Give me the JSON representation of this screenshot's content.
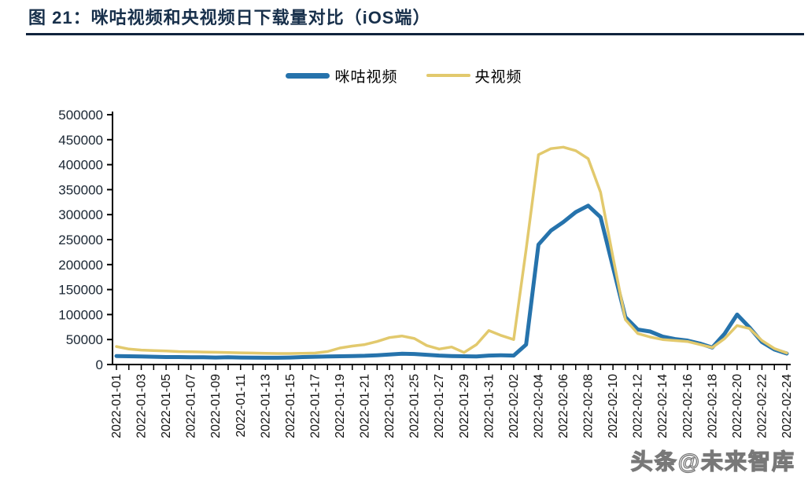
{
  "figure": {
    "title": "图 21：咪咕视频和央视频日下载量对比（iOS端）",
    "watermark": "头条@未来智库"
  },
  "colors": {
    "title": "#18304b",
    "axis": "#000000",
    "y_label": "#1a2633",
    "x_label": "#111111",
    "migu_blue": "#2673ac",
    "yang_yellow": "#e2c96d"
  },
  "chart_data": {
    "type": "line",
    "title": "咪咕视频和央视频日下载量对比（iOS端）",
    "xlabel": "",
    "ylabel": "",
    "ylim": [
      0,
      500000
    ],
    "y_tick_step": 50000,
    "y_tick_labels": [
      "0",
      "50000",
      "100000",
      "150000",
      "200000",
      "250000",
      "300000",
      "350000",
      "400000",
      "450000",
      "500000"
    ],
    "grid": false,
    "legend_position": "top-center",
    "x_label_every": 2,
    "x_label_rotation": -90,
    "x": [
      "2022-01-01",
      "2022-01-02",
      "2022-01-03",
      "2022-01-04",
      "2022-01-05",
      "2022-01-06",
      "2022-01-07",
      "2022-01-08",
      "2022-01-09",
      "2022-01-10",
      "2022-01-11",
      "2022-01-12",
      "2022-01-13",
      "2022-01-14",
      "2022-01-15",
      "2022-01-16",
      "2022-01-17",
      "2022-01-18",
      "2022-01-19",
      "2022-01-20",
      "2022-01-21",
      "2022-01-22",
      "2022-01-23",
      "2022-01-24",
      "2022-01-25",
      "2022-01-26",
      "2022-01-27",
      "2022-01-28",
      "2022-01-29",
      "2022-01-30",
      "2022-01-31",
      "2022-02-01",
      "2022-02-02",
      "2022-02-03",
      "2022-02-04",
      "2022-02-05",
      "2022-02-06",
      "2022-02-07",
      "2022-02-08",
      "2022-02-09",
      "2022-02-10",
      "2022-02-11",
      "2022-02-12",
      "2022-02-13",
      "2022-02-14",
      "2022-02-15",
      "2022-02-16",
      "2022-02-17",
      "2022-02-18",
      "2022-02-19",
      "2022-02-20",
      "2022-02-21",
      "2022-02-22",
      "2022-02-23",
      "2022-02-24"
    ],
    "series": [
      {
        "name": "咪咕视频",
        "color": "#2673ac",
        "stroke_width": 5,
        "values": [
          17000,
          16500,
          16000,
          15500,
          15000,
          15000,
          14500,
          14500,
          14000,
          14500,
          14000,
          13800,
          13500,
          13500,
          14000,
          15000,
          15500,
          16000,
          16500,
          17000,
          17500,
          18500,
          20000,
          21500,
          21000,
          19500,
          18000,
          17000,
          16500,
          16000,
          18000,
          18500,
          18000,
          40000,
          240000,
          268000,
          285000,
          305000,
          318000,
          295000,
          195000,
          95000,
          70000,
          66000,
          56000,
          51000,
          48000,
          42000,
          34000,
          62000,
          100000,
          74000,
          45000,
          30000,
          22000
        ]
      },
      {
        "name": "央视频",
        "color": "#e2c96d",
        "stroke_width": 3.5,
        "values": [
          36000,
          31000,
          29000,
          28000,
          27000,
          26000,
          25500,
          25000,
          24500,
          24000,
          23500,
          23000,
          22500,
          22000,
          22000,
          22500,
          23000,
          26000,
          33000,
          37000,
          40000,
          46000,
          54000,
          57000,
          52000,
          38000,
          31000,
          35000,
          24000,
          40000,
          68000,
          58000,
          50000,
          230000,
          420000,
          432000,
          435000,
          428000,
          412000,
          345000,
          215000,
          90000,
          62000,
          55000,
          50000,
          48000,
          46000,
          40000,
          34000,
          52000,
          78000,
          72000,
          48000,
          32000,
          23000
        ]
      }
    ]
  }
}
